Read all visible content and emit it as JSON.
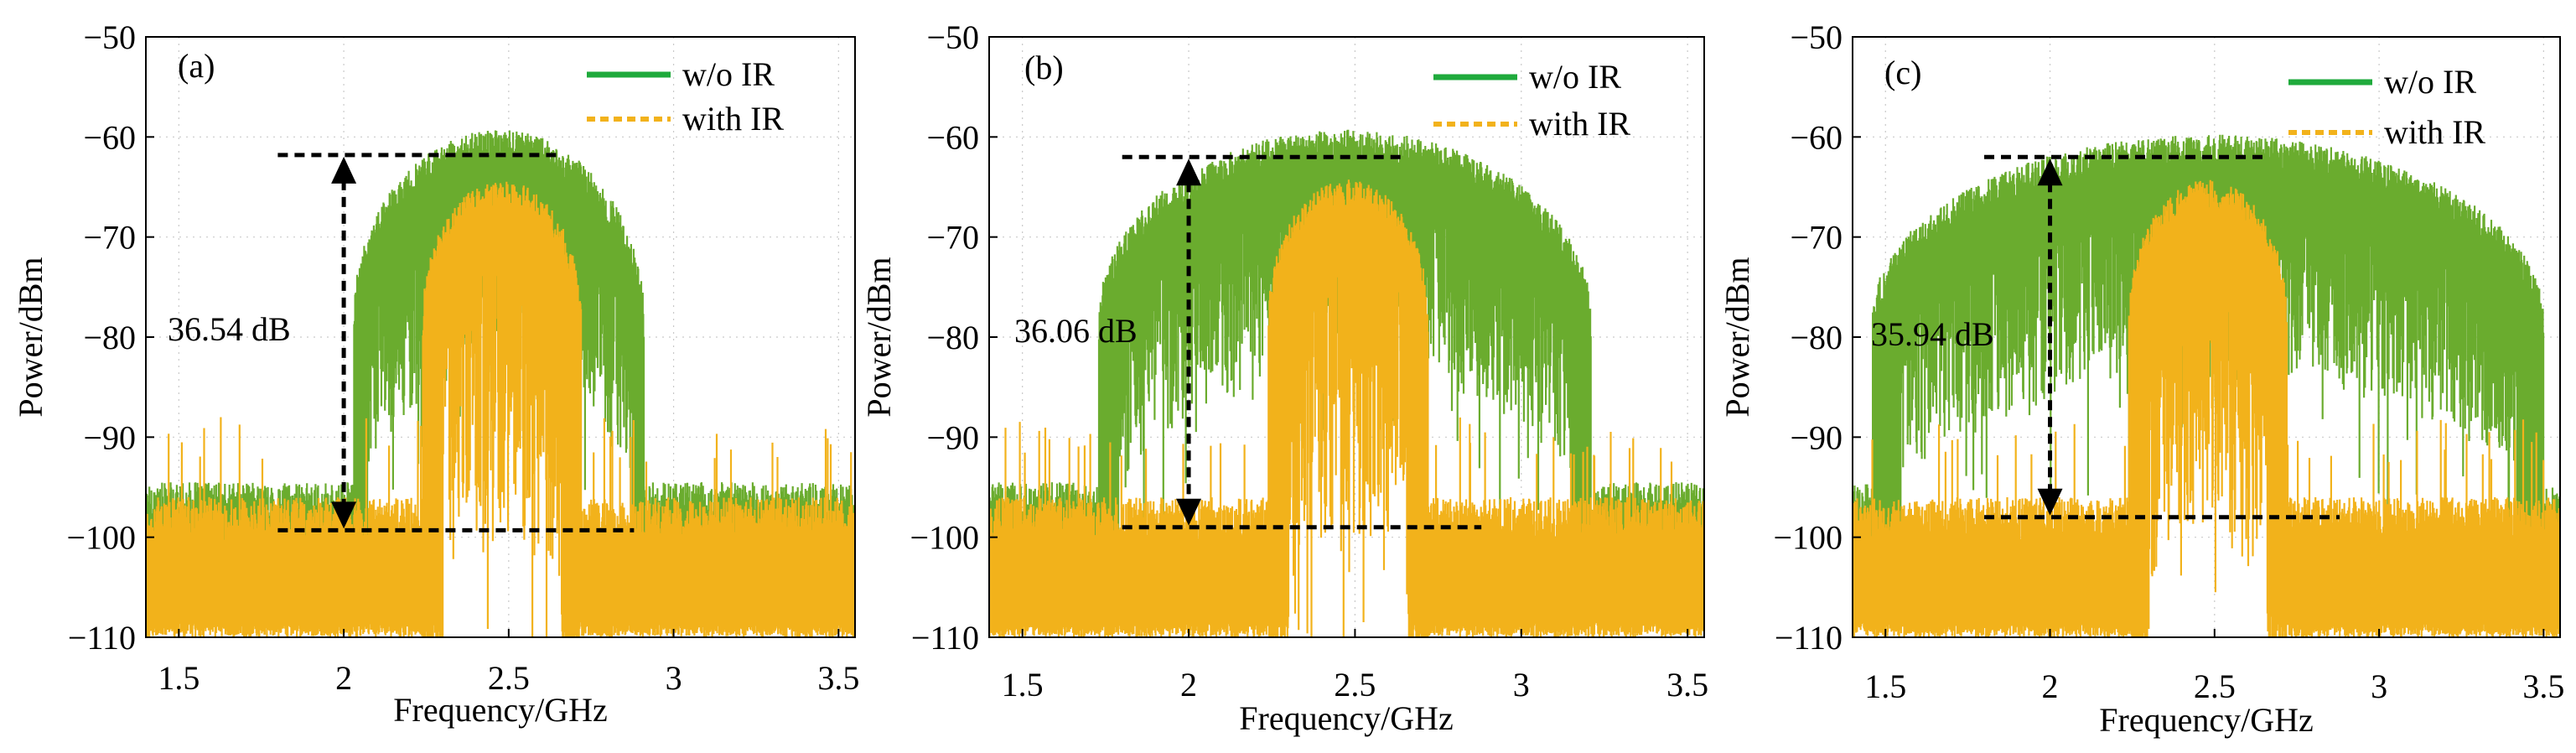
{
  "colors": {
    "without_ir": "#6aac2e",
    "without_ir_legend": "#1faa3c",
    "with_ir": "#f2b21b",
    "axis": "#000000",
    "annotation": "#000000"
  },
  "chart_data": [
    {
      "type": "line",
      "panel_label": "(a)",
      "xlabel": "Frequency/GHz",
      "ylabel": "Power/dBm",
      "xlim": [
        1.4,
        3.55
      ],
      "ylim": [
        -110,
        -50
      ],
      "xticks": [
        1.5,
        2,
        2.5,
        3,
        3.5
      ],
      "xtick_labels": [
        "1.5",
        "2",
        "2.5",
        "3",
        "3.5"
      ],
      "yticks": [
        -110,
        -100,
        -90,
        -80,
        -70,
        -60,
        -50
      ],
      "ytick_labels": [
        "−110",
        "−100",
        "−90",
        "−80",
        "−70",
        "−60",
        "−50"
      ],
      "legend": {
        "position": "top-right",
        "entries": [
          "w/o IR",
          "with IR"
        ]
      },
      "noise_floor_dbm": -101.5,
      "series": [
        {
          "name": "w/o IR",
          "style": "solid",
          "center_ghz": 2.47,
          "half_width_ghz": 0.44,
          "peak_dbm": -61.5,
          "edge_dbm": -80
        },
        {
          "name": "with IR",
          "style": "dashed",
          "center_ghz": 2.48,
          "half_width_ghz": 0.24,
          "peak_dbm": -66.5,
          "edge_dbm": -80,
          "gap_ghz": [
            2.24,
            2.7
          ]
        }
      ],
      "annotation": {
        "text": "36.54 dB",
        "arrow_x_ghz": 2.0,
        "top_dbm": -61.8,
        "bottom_dbm": -99.3,
        "top_line_ghz": [
          1.8,
          2.65
        ],
        "bottom_line_ghz": [
          1.8,
          2.88
        ]
      }
    },
    {
      "type": "line",
      "panel_label": "(b)",
      "xlabel": "Frequency/GHz",
      "ylabel": "Power/dBm",
      "xlim": [
        1.4,
        3.55
      ],
      "ylim": [
        -110,
        -50
      ],
      "xticks": [
        1.5,
        2,
        2.5,
        3,
        3.5
      ],
      "xtick_labels": [
        "1.5",
        "2",
        "2.5",
        "3",
        "3.5"
      ],
      "yticks": [
        -110,
        -100,
        -90,
        -80,
        -70,
        -60,
        -50
      ],
      "ytick_labels": [
        "−110",
        "−100",
        "−90",
        "−80",
        "−70",
        "−60",
        "−50"
      ],
      "legend": {
        "position": "top-right",
        "entries": [
          "w/o IR",
          "with IR"
        ]
      },
      "noise_floor_dbm": -101.5,
      "series": [
        {
          "name": "w/o IR",
          "style": "solid",
          "center_ghz": 2.47,
          "half_width_ghz": 0.74,
          "peak_dbm": -61.5,
          "edge_dbm": -80
        },
        {
          "name": "with IR",
          "style": "dashed",
          "center_ghz": 2.48,
          "half_width_ghz": 0.24,
          "peak_dbm": -66.5,
          "edge_dbm": -80,
          "gap_ghz": [
            2.28,
            2.72
          ]
        }
      ],
      "annotation": {
        "text": "36.06 dB",
        "arrow_x_ghz": 2.0,
        "top_dbm": -62.0,
        "bottom_dbm": -99.0,
        "top_line_ghz": [
          1.8,
          2.65
        ],
        "bottom_line_ghz": [
          1.8,
          2.88
        ]
      }
    },
    {
      "type": "line",
      "panel_label": "(c)",
      "xlabel": "Frequency/GHz",
      "ylabel": "Power/dBm",
      "xlim": [
        1.4,
        3.55
      ],
      "ylim": [
        -110,
        -50
      ],
      "xticks": [
        1.5,
        2,
        2.5,
        3,
        3.5
      ],
      "xtick_labels": [
        "1.5",
        "2",
        "2.5",
        "3",
        "3.5"
      ],
      "yticks": [
        -110,
        -100,
        -90,
        -80,
        -70,
        -60,
        -50
      ],
      "ytick_labels": [
        "−110",
        "−100",
        "−90",
        "−80",
        "−70",
        "−60",
        "−50"
      ],
      "legend": {
        "position": "top-right",
        "entries": [
          "w/o IR",
          "with IR"
        ]
      },
      "noise_floor_dbm": -101.5,
      "series": [
        {
          "name": "w/o IR",
          "style": "solid",
          "center_ghz": 2.48,
          "half_width_ghz": 1.02,
          "peak_dbm": -62.0,
          "edge_dbm": -80
        },
        {
          "name": "with IR",
          "style": "dashed",
          "center_ghz": 2.48,
          "half_width_ghz": 0.24,
          "peak_dbm": -66.5,
          "edge_dbm": -80,
          "gap_ghz": [
            2.27,
            2.7
          ]
        }
      ],
      "annotation": {
        "text": "35.94 dB",
        "arrow_x_ghz": 2.0,
        "top_dbm": -62.0,
        "bottom_dbm": -98.0,
        "top_line_ghz": [
          1.8,
          2.65
        ],
        "bottom_line_ghz": [
          1.8,
          2.88
        ]
      }
    }
  ]
}
